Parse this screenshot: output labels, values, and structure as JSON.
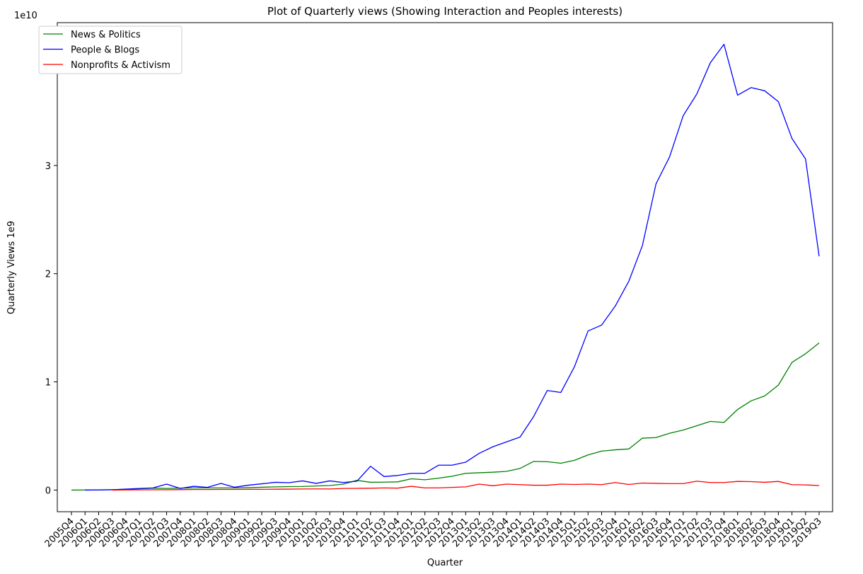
{
  "chart_data": {
    "type": "line",
    "title": "Plot of Quarterly views (Showing Interaction and Peoples interests)",
    "xlabel": "Quarter",
    "ylabel": "Quarterly Views 1e9",
    "y_offset_label": "1e10",
    "yticks": [
      0,
      1,
      2,
      3,
      4
    ],
    "ylim": [
      -2000000000.0,
      43200000000.0
    ],
    "legend_position": "upper-left",
    "grid": false,
    "categories": [
      "2005Q4",
      "2006Q1",
      "2006Q2",
      "2006Q3",
      "2006Q4",
      "2007Q1",
      "2007Q2",
      "2007Q3",
      "2007Q4",
      "2008Q1",
      "2008Q2",
      "2008Q3",
      "2008Q4",
      "2009Q1",
      "2009Q2",
      "2009Q3",
      "2009Q4",
      "2010Q1",
      "2010Q2",
      "2010Q3",
      "2010Q4",
      "2011Q1",
      "2011Q2",
      "2011Q3",
      "2011Q4",
      "2012Q1",
      "2012Q2",
      "2012Q3",
      "2012Q4",
      "2013Q1",
      "2013Q2",
      "2013Q3",
      "2013Q4",
      "2014Q1",
      "2014Q2",
      "2014Q3",
      "2014Q4",
      "2015Q1",
      "2015Q2",
      "2015Q3",
      "2015Q4",
      "2016Q1",
      "2016Q2",
      "2016Q3",
      "2016Q4",
      "2017Q1",
      "2017Q2",
      "2017Q3",
      "2017Q4",
      "2018Q1",
      "2018Q2",
      "2018Q3",
      "2018Q4",
      "2019Q1",
      "2019Q2",
      "2019Q3"
    ],
    "series": [
      {
        "name": "News & Politics",
        "color": "#008000",
        "values": [
          0,
          10000000.0,
          20000000.0,
          40000000.0,
          70000000.0,
          120000000.0,
          180000000.0,
          150000000.0,
          180000000.0,
          200000000.0,
          200000000.0,
          200000000.0,
          200000000.0,
          220000000.0,
          260000000.0,
          300000000.0,
          320000000.0,
          330000000.0,
          380000000.0,
          420000000.0,
          550000000.0,
          900000000.0,
          720000000.0,
          730000000.0,
          760000000.0,
          1040000000.0,
          950000000.0,
          1100000000.0,
          1280000000.0,
          1550000000.0,
          1600000000.0,
          1650000000.0,
          1730000000.0,
          2000000000.0,
          2650000000.0,
          2620000000.0,
          2480000000.0,
          2750000000.0,
          3250000000.0,
          3600000000.0,
          3720000000.0,
          3800000000.0,
          4800000000.0,
          4850000000.0,
          5250000000.0,
          5550000000.0,
          5950000000.0,
          6350000000.0,
          6250000000.0,
          7450000000.0,
          8250000000.0,
          8700000000.0,
          9700000000.0,
          11800000000.0,
          12600000000.0,
          13600000000.0
        ]
      },
      {
        "name": "People & Blogs",
        "color": "#0000ff",
        "values": [
          null,
          0,
          10000000.0,
          30000000.0,
          90000000.0,
          150000000.0,
          200000000.0,
          550000000.0,
          150000000.0,
          350000000.0,
          250000000.0,
          620000000.0,
          260000000.0,
          450000000.0,
          580000000.0,
          720000000.0,
          680000000.0,
          850000000.0,
          620000000.0,
          850000000.0,
          700000000.0,
          820000000.0,
          2200000000.0,
          1250000000.0,
          1350000000.0,
          1550000000.0,
          1550000000.0,
          2300000000.0,
          2300000000.0,
          2580000000.0,
          3400000000.0,
          4000000000.0,
          4450000000.0,
          4900000000.0,
          6800000000.0,
          9200000000.0,
          9020000000.0,
          11400000000.0,
          14700000000.0,
          15250000000.0,
          17000000000.0,
          19300000000.0,
          22600000000.0,
          28300000000.0,
          30800000000.0,
          34600000000.0,
          36600000000.0,
          39500000000.0,
          41200000000.0,
          36500000000.0,
          37200000000.0,
          36900000000.0,
          35900000000.0,
          32500000000.0,
          30600000000.0,
          21600000000.0
        ]
      },
      {
        "name": "Nonprofits & Activism",
        "color": "#ff0000",
        "values": [
          null,
          null,
          null,
          0,
          10000000.0,
          20000000.0,
          30000000.0,
          30000000.0,
          40000000.0,
          50000000.0,
          50000000.0,
          60000000.0,
          60000000.0,
          70000000.0,
          70000000.0,
          80000000.0,
          90000000.0,
          100000000.0,
          110000000.0,
          100000000.0,
          150000000.0,
          160000000.0,
          170000000.0,
          200000000.0,
          180000000.0,
          350000000.0,
          200000000.0,
          200000000.0,
          250000000.0,
          300000000.0,
          550000000.0,
          400000000.0,
          550000000.0,
          500000000.0,
          450000000.0,
          450000000.0,
          550000000.0,
          520000000.0,
          550000000.0,
          500000000.0,
          700000000.0,
          520000000.0,
          650000000.0,
          620000000.0,
          600000000.0,
          600000000.0,
          820000000.0,
          700000000.0,
          700000000.0,
          800000000.0,
          780000000.0,
          720000000.0,
          800000000.0,
          500000000.0,
          480000000.0,
          420000000.0
        ]
      }
    ]
  }
}
